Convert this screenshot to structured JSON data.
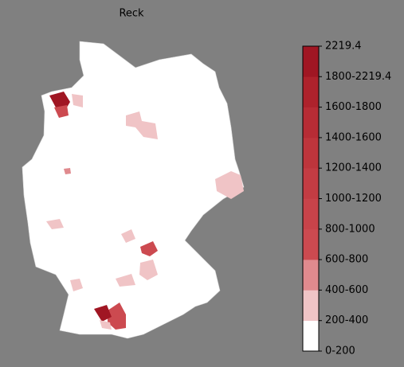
{
  "title": "Reck",
  "colorbar": {
    "labels": [
      "0-200",
      "200-400",
      "400-600",
      "600-800",
      "800-1000",
      "1000-1200",
      "1200-1400",
      "1400-1600",
      "1600-1800",
      "1800-2219.4",
      "2219.4"
    ],
    "colors": [
      "#ffffff",
      "#f0c4c6",
      "#e08a8e",
      "#cc4a50",
      "#c8434a",
      "#c33c43",
      "#be353c",
      "#b72c35",
      "#ae222c",
      "#a01623"
    ]
  }
}
